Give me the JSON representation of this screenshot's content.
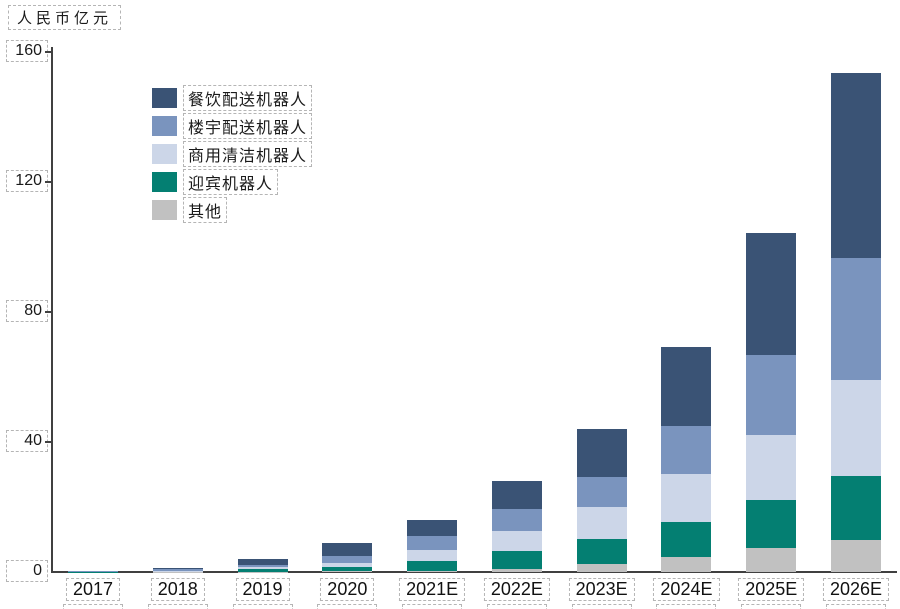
{
  "chart": {
    "unit_label": "人民币亿元"
  },
  "chart_data": {
    "type": "bar",
    "stacked": true,
    "title": "",
    "ylabel": "人民币亿元",
    "xlabel": "",
    "ylim": [
      0,
      160
    ],
    "yticks": [
      0,
      40,
      80,
      120,
      160
    ],
    "grid": false,
    "legend_position": "upper-left-inside",
    "categories": [
      "2017",
      "2018",
      "2019",
      "2020",
      "2021E",
      "2022E",
      "2023E",
      "2024E",
      "2025E",
      "2026E"
    ],
    "series": [
      {
        "name": "餐饮配送机器人",
        "color": "#3a5375",
        "values": [
          0.2,
          0.5,
          1.8,
          4.0,
          5.0,
          8.6,
          14.8,
          24.3,
          37.5,
          57.0
        ]
      },
      {
        "name": "楼宇配送机器人",
        "color": "#7a94be",
        "values": [
          0.1,
          0.5,
          0.6,
          2.1,
          4.4,
          6.8,
          9.2,
          14.8,
          24.5,
          37.5
        ]
      },
      {
        "name": "商用清洁机器人",
        "color": "#ccd6e8",
        "values": [
          0.05,
          0.15,
          0.6,
          1.3,
          3.4,
          6.2,
          9.8,
          14.5,
          20.0,
          29.5
        ]
      },
      {
        "name": "迎宾机器人",
        "color": "#047f72",
        "values": [
          0.05,
          0.1,
          0.9,
          1.4,
          3.0,
          5.5,
          7.7,
          11.0,
          15.0,
          19.5
        ]
      },
      {
        "name": "其他",
        "color": "#c1c1c1",
        "values": [
          0.0,
          0.05,
          0.1,
          0.2,
          0.3,
          0.9,
          2.5,
          4.5,
          7.3,
          10.0
        ]
      }
    ],
    "totals": [
      0.4,
      1.3,
      4.0,
      9.0,
      16.1,
      28.0,
      44.0,
      69.1,
      104.3,
      153.5
    ]
  }
}
